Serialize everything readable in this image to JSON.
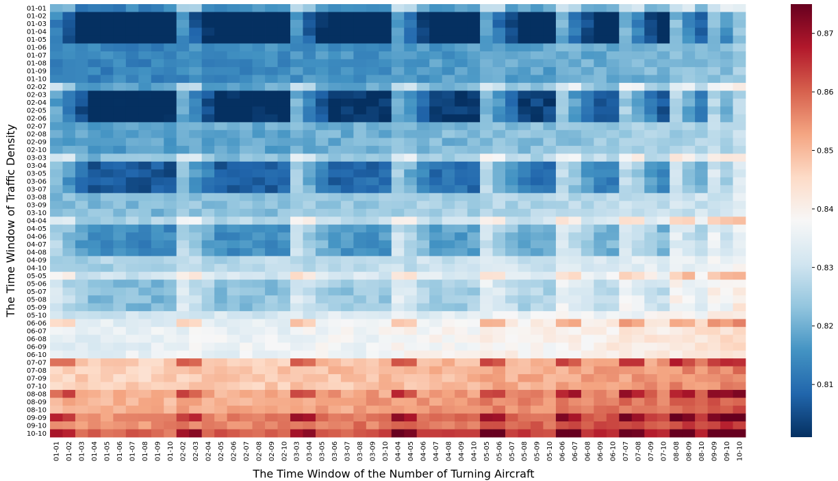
{
  "chart_data": {
    "type": "heatmap",
    "title": "",
    "xlabel": "The Time Window of the Number of Turning Aircraft",
    "ylabel": "The Time Window of Traffic Density",
    "x_categories": [
      "01-01",
      "01-02",
      "01-03",
      "01-04",
      "01-05",
      "01-06",
      "01-07",
      "01-08",
      "01-09",
      "01-10",
      "02-02",
      "02-03",
      "02-04",
      "02-05",
      "02-06",
      "02-07",
      "02-08",
      "02-09",
      "02-10",
      "03-03",
      "03-04",
      "03-05",
      "03-06",
      "03-07",
      "03-08",
      "03-09",
      "03-10",
      "04-04",
      "04-05",
      "04-06",
      "04-07",
      "04-08",
      "04-09",
      "04-10",
      "05-05",
      "05-06",
      "05-07",
      "05-08",
      "05-09",
      "05-10",
      "06-06",
      "06-07",
      "06-08",
      "06-09",
      "06-10",
      "07-07",
      "07-08",
      "07-09",
      "07-10",
      "08-08",
      "08-09",
      "08-10",
      "09-09",
      "09-10",
      "10-10"
    ],
    "y_categories": [
      "01-01",
      "01-02",
      "01-03",
      "01-04",
      "01-05",
      "01-06",
      "01-07",
      "01-08",
      "01-09",
      "01-10",
      "02-02",
      "02-03",
      "02-04",
      "02-05",
      "02-06",
      "02-07",
      "02-08",
      "02-09",
      "02-10",
      "03-03",
      "03-04",
      "03-05",
      "03-06",
      "03-07",
      "03-08",
      "03-09",
      "03-10",
      "04-04",
      "04-05",
      "04-06",
      "04-07",
      "04-08",
      "04-09",
      "04-10",
      "05-05",
      "05-06",
      "05-07",
      "05-08",
      "05-09",
      "05-10",
      "06-06",
      "06-07",
      "06-08",
      "06-09",
      "06-10",
      "07-07",
      "07-08",
      "07-09",
      "07-10",
      "08-08",
      "08-09",
      "08-10",
      "09-09",
      "09-10",
      "10-10"
    ],
    "colorbar": {
      "colormap": "RdBu_r",
      "vmin": 0.801,
      "vmax": 0.875,
      "ticks": [
        0.81,
        0.82,
        0.83,
        0.84,
        0.85,
        0.86,
        0.87
      ],
      "tick_labels": [
        "0.81",
        "0.82",
        "0.83",
        "0.84",
        "0.85",
        "0.86",
        "0.87"
      ]
    }
  }
}
